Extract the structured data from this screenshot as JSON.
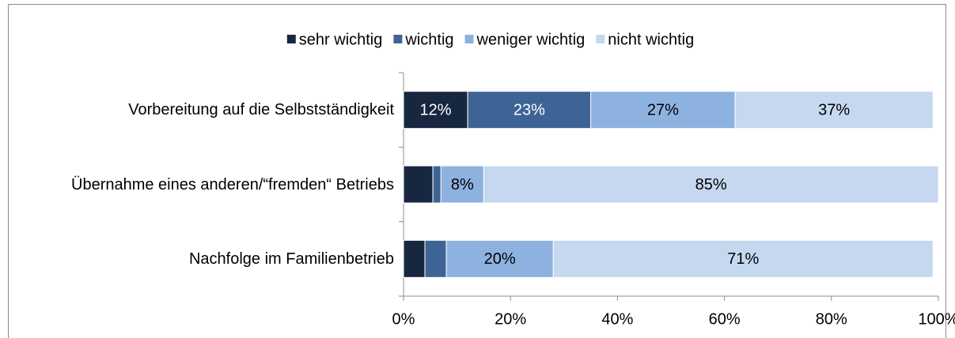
{
  "chart_data": {
    "type": "stacked_barh",
    "categories": [
      "Vorbereitung auf die Selbstständigkeit",
      "Übernahme eines anderen/“fremden“ Betriebs",
      "Nachfolge im Familienbetrieb"
    ],
    "series": [
      {
        "name": "sehr wichtig",
        "color": "#17273f",
        "label_color": "#ffffff",
        "values": [
          12,
          5.5,
          4
        ],
        "value_labels": [
          "12%",
          null,
          null
        ]
      },
      {
        "name": "wichtig",
        "color": "#3e6496",
        "label_color": "#ffffff",
        "values": [
          23,
          1.5,
          4
        ],
        "value_labels": [
          "23%",
          null,
          null
        ]
      },
      {
        "name": "weniger wichtig",
        "color": "#8eb2e0",
        "label_color": "#000000",
        "values": [
          27,
          8,
          20
        ],
        "value_labels": [
          "27%",
          "8%",
          "20%"
        ]
      },
      {
        "name": "nicht wichtig",
        "color": "#c6d8f0",
        "label_color": "#000000",
        "values": [
          37,
          85,
          71
        ],
        "value_labels": [
          "37%",
          "85%",
          "71%"
        ]
      }
    ],
    "xlim": [
      0,
      100
    ],
    "xticks": [
      {
        "value": 0,
        "label": "0%"
      },
      {
        "value": 20,
        "label": "20%"
      },
      {
        "value": 40,
        "label": "40%"
      },
      {
        "value": 60,
        "label": "60%"
      },
      {
        "value": 80,
        "label": "80%"
      },
      {
        "value": 100,
        "label": "100%"
      }
    ],
    "legend": "top"
  }
}
